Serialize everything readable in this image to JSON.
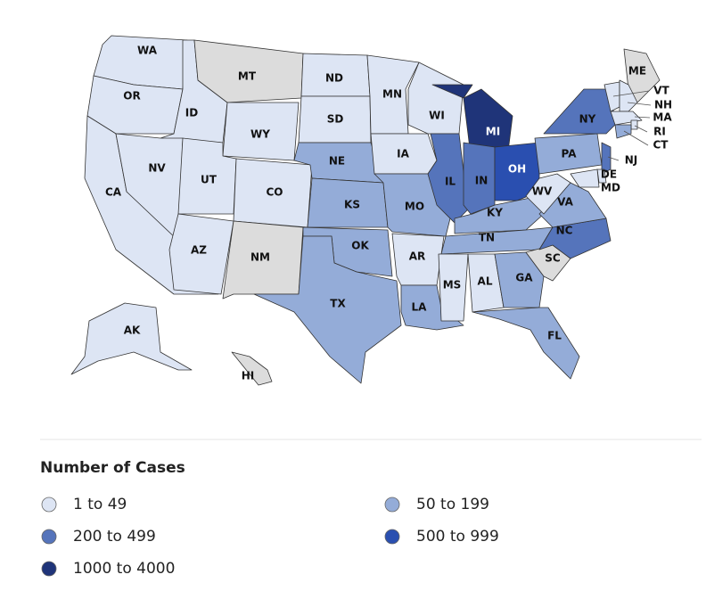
{
  "legend": {
    "title": "Number of Cases",
    "items": [
      {
        "label": "1 to 49",
        "color": "#dde5f4"
      },
      {
        "label": "50 to 199",
        "color": "#94acd8"
      },
      {
        "label": "200 to 499",
        "color": "#5574bb"
      },
      {
        "label": "500 to 999",
        "color": "#2a4fb0"
      },
      {
        "label": "1000 to 4000",
        "color": "#1f3479"
      }
    ]
  },
  "no_data_color": "#dcdcdc",
  "states": [
    {
      "label": "WA",
      "color": "#dde5f4"
    },
    {
      "label": "OR",
      "color": "#dde5f4"
    },
    {
      "label": "CA",
      "color": "#dde5f4"
    },
    {
      "label": "ID",
      "color": "#dde5f4"
    },
    {
      "label": "NV",
      "color": "#dde5f4"
    },
    {
      "label": "MT",
      "color": "#dcdcdc"
    },
    {
      "label": "WY",
      "color": "#dde5f4"
    },
    {
      "label": "UT",
      "color": "#dde5f4"
    },
    {
      "label": "CO",
      "color": "#dde5f4"
    },
    {
      "label": "AZ",
      "color": "#dde5f4"
    },
    {
      "label": "NM",
      "color": "#dcdcdc"
    },
    {
      "label": "ND",
      "color": "#dde5f4"
    },
    {
      "label": "SD",
      "color": "#dde5f4"
    },
    {
      "label": "NE",
      "color": "#94acd8"
    },
    {
      "label": "KS",
      "color": "#94acd8"
    },
    {
      "label": "OK",
      "color": "#94acd8"
    },
    {
      "label": "TX",
      "color": "#94acd8"
    },
    {
      "label": "MN",
      "color": "#dde5f4"
    },
    {
      "label": "IA",
      "color": "#dde5f4"
    },
    {
      "label": "MO",
      "color": "#94acd8"
    },
    {
      "label": "AR",
      "color": "#dde5f4"
    },
    {
      "label": "LA",
      "color": "#94acd8"
    },
    {
      "label": "WI",
      "color": "#dde5f4"
    },
    {
      "label": "IL",
      "color": "#5574bb"
    },
    {
      "label": "MI",
      "color": "#1f3479"
    },
    {
      "label": "IN",
      "color": "#5574bb"
    },
    {
      "label": "OH",
      "color": "#2a4fb0"
    },
    {
      "label": "KY",
      "color": "#94acd8"
    },
    {
      "label": "TN",
      "color": "#94acd8"
    },
    {
      "label": "MS",
      "color": "#dde5f4"
    },
    {
      "label": "AL",
      "color": "#dde5f4"
    },
    {
      "label": "GA",
      "color": "#94acd8"
    },
    {
      "label": "FL",
      "color": "#94acd8"
    },
    {
      "label": "SC",
      "color": "#dcdcdc"
    },
    {
      "label": "NC",
      "color": "#5574bb"
    },
    {
      "label": "VA",
      "color": "#94acd8"
    },
    {
      "label": "WV",
      "color": "#dde5f4"
    },
    {
      "label": "PA",
      "color": "#94acd8"
    },
    {
      "label": "NY",
      "color": "#5574bb"
    },
    {
      "label": "ME",
      "color": "#dcdcdc"
    },
    {
      "label": "VT",
      "color": "#dde5f4"
    },
    {
      "label": "NH",
      "color": "#dde5f4"
    },
    {
      "label": "MA",
      "color": "#dde5f4"
    },
    {
      "label": "RI",
      "color": "#dde5f4"
    },
    {
      "label": "CT",
      "color": "#94acd8"
    },
    {
      "label": "NJ",
      "color": "#5574bb"
    },
    {
      "label": "DE",
      "color": "#dde5f4"
    },
    {
      "label": "MD",
      "color": "#dde5f4"
    },
    {
      "label": "AK",
      "color": "#dde5f4"
    },
    {
      "label": "HI",
      "color": "#dcdcdc"
    }
  ]
}
